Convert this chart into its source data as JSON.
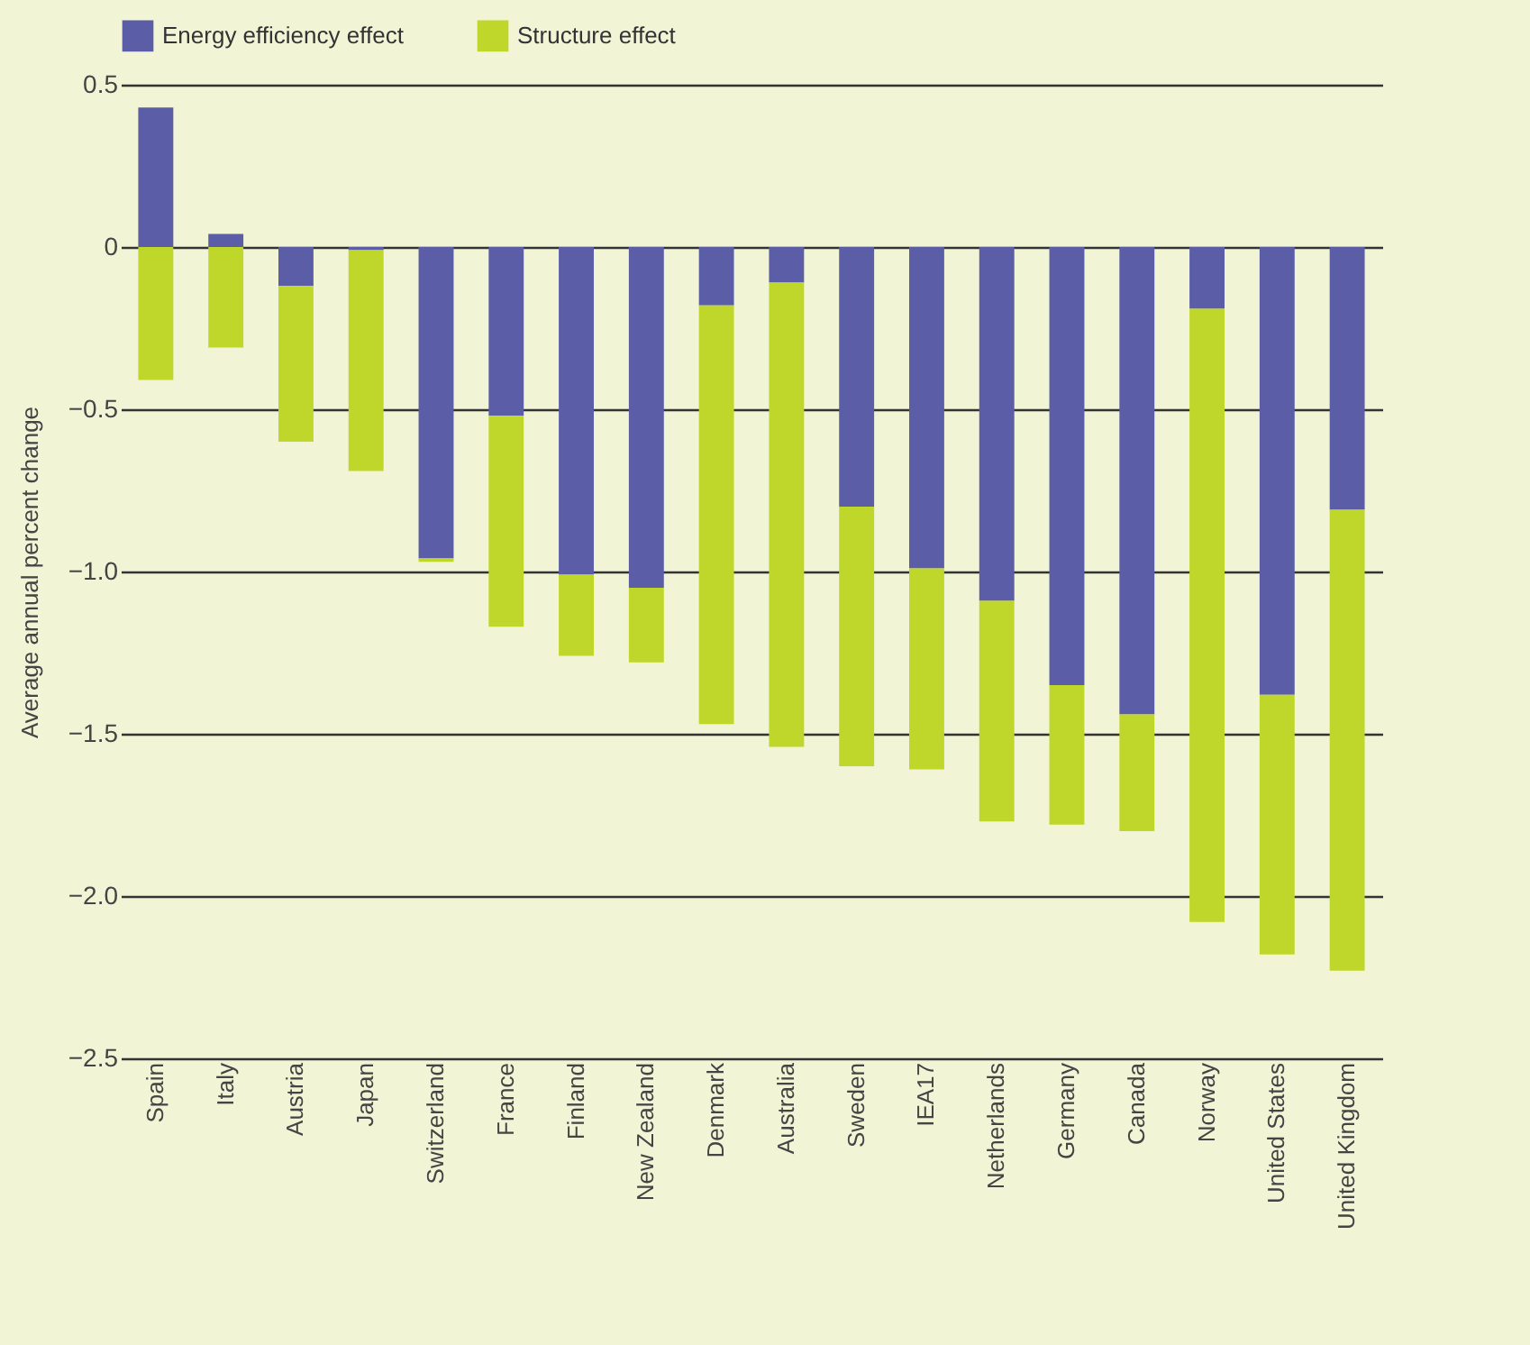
{
  "chart_data": {
    "type": "bar",
    "stacked": true,
    "ylabel": "Average annual percent change",
    "categories": [
      "Spain",
      "Italy",
      "Austria",
      "Japan",
      "Switzerland",
      "France",
      "Finland",
      "New Zealand",
      "Denmark",
      "Australia",
      "Sweden",
      "IEA17",
      "Netherlands",
      "Germany",
      "Canada",
      "Norway",
      "United States",
      "United Kingdom"
    ],
    "series": [
      {
        "name": "Energy efficiency effect",
        "color": "#5b5ea6",
        "values": [
          0.43,
          0.04,
          -0.12,
          -0.01,
          -0.96,
          -0.52,
          -1.01,
          -1.05,
          -0.18,
          -0.11,
          -0.8,
          -0.99,
          -1.09,
          -1.35,
          -1.44,
          -0.19,
          -1.38,
          -0.81
        ]
      },
      {
        "name": "Structure effect",
        "color": "#bfd62b",
        "values": [
          -0.41,
          -0.31,
          -0.48,
          -0.68,
          -0.01,
          -0.65,
          -0.25,
          -0.23,
          -1.29,
          -1.43,
          -0.8,
          -0.62,
          -0.68,
          -0.43,
          -0.36,
          -1.89,
          -0.8,
          -1.42
        ]
      }
    ],
    "ylim": [
      -2.5,
      0.5
    ],
    "yticks": [
      0.5,
      0,
      -0.5,
      {
        "value": -1,
        "label": "−1.0"
      },
      -1.5,
      {
        "value": -2,
        "label": "−2.0"
      },
      -2.5
    ],
    "grid": "y",
    "legend": "top"
  }
}
